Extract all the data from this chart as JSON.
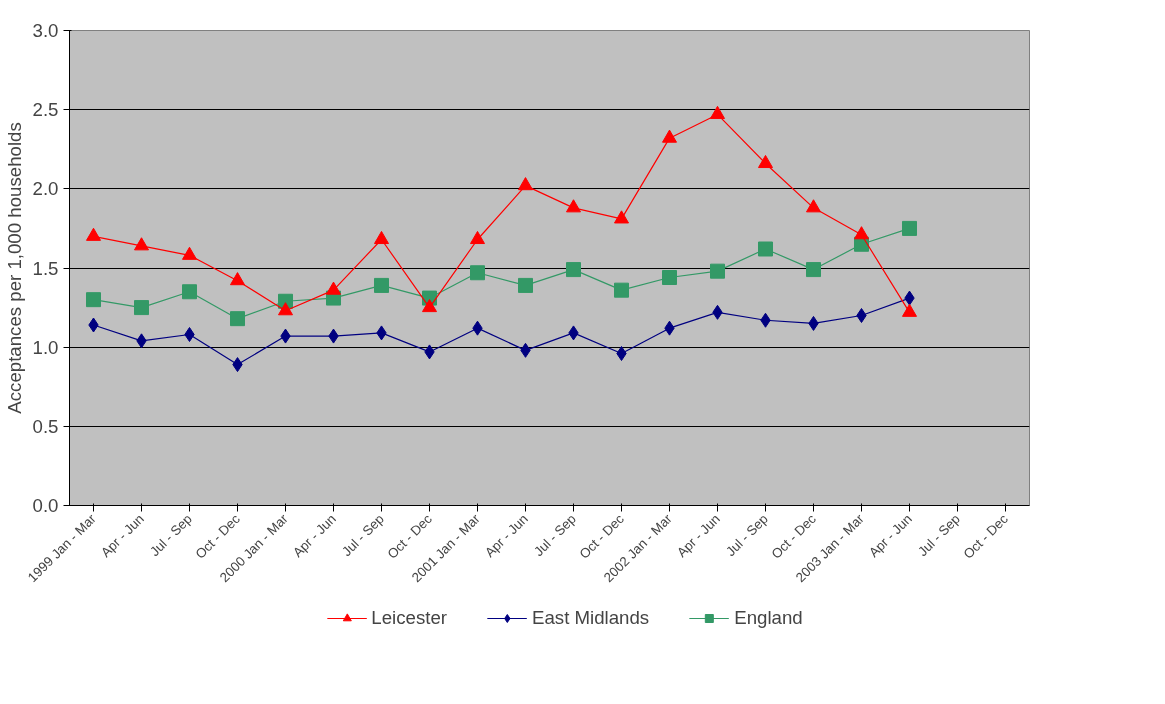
{
  "chart_data": {
    "type": "line",
    "ylabel": "Acceptances per 1,000 households",
    "categories": [
      "1999 Jan - Mar",
      "Apr - Jun",
      "Jul - Sep",
      "Oct - Dec",
      "2000 Jan - Mar",
      "Apr - Jun",
      "Jul - Sep",
      "Oct - Dec",
      "2001 Jan - Mar",
      "Apr - Jun",
      "Jul - Sep",
      "Oct - Dec",
      "2002 Jan - Mar",
      "Apr - Jun",
      "Jul - Sep",
      "Oct - Dec",
      "2003 Jan - Mar",
      "Apr - Jun",
      "Jul - Sep",
      "Oct - Dec"
    ],
    "series": [
      {
        "name": "Leicester",
        "color": "#ff0000",
        "marker": "triangle",
        "values": [
          1.7,
          1.64,
          1.58,
          1.42,
          1.23,
          1.36,
          1.68,
          1.25,
          1.68,
          2.02,
          1.88,
          1.81,
          2.32,
          2.47,
          2.16,
          1.88,
          1.71,
          1.22,
          null,
          null
        ]
      },
      {
        "name": "East Midlands",
        "color": "#000080",
        "marker": "diamond",
        "values": [
          1.14,
          1.04,
          1.08,
          0.89,
          1.07,
          1.07,
          1.09,
          0.97,
          1.12,
          0.98,
          1.09,
          0.96,
          1.12,
          1.22,
          1.17,
          1.15,
          1.2,
          1.31,
          null,
          null
        ]
      },
      {
        "name": "England",
        "color": "#339966",
        "marker": "square",
        "values": [
          1.3,
          1.25,
          1.35,
          1.18,
          1.29,
          1.31,
          1.39,
          1.31,
          1.47,
          1.39,
          1.49,
          1.36,
          1.44,
          1.48,
          1.62,
          1.49,
          1.65,
          1.75,
          null,
          null
        ]
      }
    ],
    "ylim": [
      0,
      3
    ],
    "yticks": [
      {
        "value": 0,
        "label": "0.0"
      },
      {
        "value": 0.5,
        "label": "0.5"
      },
      {
        "value": 1,
        "label": "1.0"
      },
      {
        "value": 1.5,
        "label": "1.5"
      },
      {
        "value": 2,
        "label": "2.0"
      },
      {
        "value": 2.5,
        "label": "2.5"
      },
      {
        "value": 3,
        "label": "3.0"
      }
    ],
    "grid": "y",
    "legend": "bottom"
  }
}
